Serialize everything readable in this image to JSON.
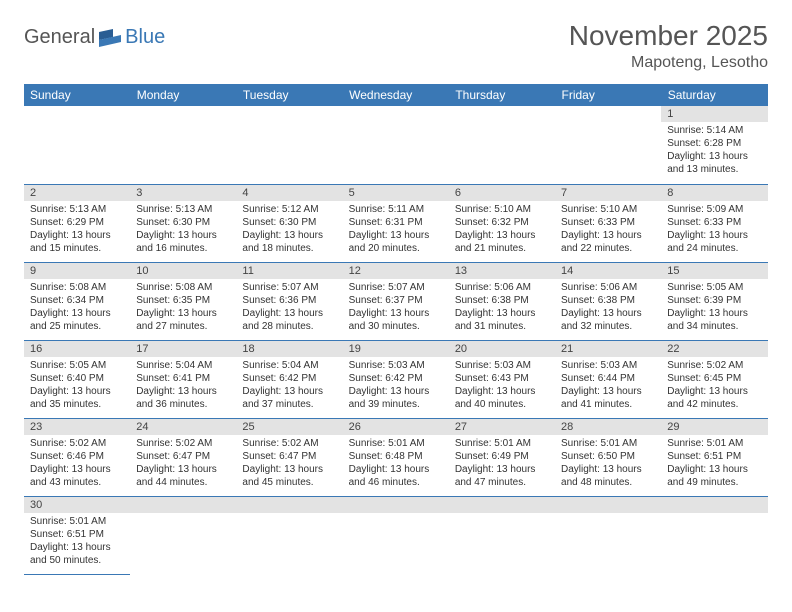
{
  "logo": {
    "part1": "General",
    "part2": "Blue"
  },
  "title": "November 2025",
  "location": "Mapoteng, Lesotho",
  "colors": {
    "header_bg": "#3a78b5",
    "header_text": "#ffffff",
    "daynum_bg": "#e3e3e3",
    "border": "#3a78b5",
    "text": "#333333",
    "logo_gray": "#555555",
    "logo_blue": "#3a78b5"
  },
  "dayHeaders": [
    "Sunday",
    "Monday",
    "Tuesday",
    "Wednesday",
    "Thursday",
    "Friday",
    "Saturday"
  ],
  "weeks": [
    [
      null,
      null,
      null,
      null,
      null,
      null,
      {
        "n": "1",
        "sr": "5:14 AM",
        "ss": "6:28 PM",
        "dl": "13 hours and 13 minutes."
      }
    ],
    [
      {
        "n": "2",
        "sr": "5:13 AM",
        "ss": "6:29 PM",
        "dl": "13 hours and 15 minutes."
      },
      {
        "n": "3",
        "sr": "5:13 AM",
        "ss": "6:30 PM",
        "dl": "13 hours and 16 minutes."
      },
      {
        "n": "4",
        "sr": "5:12 AM",
        "ss": "6:30 PM",
        "dl": "13 hours and 18 minutes."
      },
      {
        "n": "5",
        "sr": "5:11 AM",
        "ss": "6:31 PM",
        "dl": "13 hours and 20 minutes."
      },
      {
        "n": "6",
        "sr": "5:10 AM",
        "ss": "6:32 PM",
        "dl": "13 hours and 21 minutes."
      },
      {
        "n": "7",
        "sr": "5:10 AM",
        "ss": "6:33 PM",
        "dl": "13 hours and 22 minutes."
      },
      {
        "n": "8",
        "sr": "5:09 AM",
        "ss": "6:33 PM",
        "dl": "13 hours and 24 minutes."
      }
    ],
    [
      {
        "n": "9",
        "sr": "5:08 AM",
        "ss": "6:34 PM",
        "dl": "13 hours and 25 minutes."
      },
      {
        "n": "10",
        "sr": "5:08 AM",
        "ss": "6:35 PM",
        "dl": "13 hours and 27 minutes."
      },
      {
        "n": "11",
        "sr": "5:07 AM",
        "ss": "6:36 PM",
        "dl": "13 hours and 28 minutes."
      },
      {
        "n": "12",
        "sr": "5:07 AM",
        "ss": "6:37 PM",
        "dl": "13 hours and 30 minutes."
      },
      {
        "n": "13",
        "sr": "5:06 AM",
        "ss": "6:38 PM",
        "dl": "13 hours and 31 minutes."
      },
      {
        "n": "14",
        "sr": "5:06 AM",
        "ss": "6:38 PM",
        "dl": "13 hours and 32 minutes."
      },
      {
        "n": "15",
        "sr": "5:05 AM",
        "ss": "6:39 PM",
        "dl": "13 hours and 34 minutes."
      }
    ],
    [
      {
        "n": "16",
        "sr": "5:05 AM",
        "ss": "6:40 PM",
        "dl": "13 hours and 35 minutes."
      },
      {
        "n": "17",
        "sr": "5:04 AM",
        "ss": "6:41 PM",
        "dl": "13 hours and 36 minutes."
      },
      {
        "n": "18",
        "sr": "5:04 AM",
        "ss": "6:42 PM",
        "dl": "13 hours and 37 minutes."
      },
      {
        "n": "19",
        "sr": "5:03 AM",
        "ss": "6:42 PM",
        "dl": "13 hours and 39 minutes."
      },
      {
        "n": "20",
        "sr": "5:03 AM",
        "ss": "6:43 PM",
        "dl": "13 hours and 40 minutes."
      },
      {
        "n": "21",
        "sr": "5:03 AM",
        "ss": "6:44 PM",
        "dl": "13 hours and 41 minutes."
      },
      {
        "n": "22",
        "sr": "5:02 AM",
        "ss": "6:45 PM",
        "dl": "13 hours and 42 minutes."
      }
    ],
    [
      {
        "n": "23",
        "sr": "5:02 AM",
        "ss": "6:46 PM",
        "dl": "13 hours and 43 minutes."
      },
      {
        "n": "24",
        "sr": "5:02 AM",
        "ss": "6:47 PM",
        "dl": "13 hours and 44 minutes."
      },
      {
        "n": "25",
        "sr": "5:02 AM",
        "ss": "6:47 PM",
        "dl": "13 hours and 45 minutes."
      },
      {
        "n": "26",
        "sr": "5:01 AM",
        "ss": "6:48 PM",
        "dl": "13 hours and 46 minutes."
      },
      {
        "n": "27",
        "sr": "5:01 AM",
        "ss": "6:49 PM",
        "dl": "13 hours and 47 minutes."
      },
      {
        "n": "28",
        "sr": "5:01 AM",
        "ss": "6:50 PM",
        "dl": "13 hours and 48 minutes."
      },
      {
        "n": "29",
        "sr": "5:01 AM",
        "ss": "6:51 PM",
        "dl": "13 hours and 49 minutes."
      }
    ],
    [
      {
        "n": "30",
        "sr": "5:01 AM",
        "ss": "6:51 PM",
        "dl": "13 hours and 50 minutes."
      },
      null,
      null,
      null,
      null,
      null,
      null
    ]
  ],
  "labels": {
    "sunrise": "Sunrise:",
    "sunset": "Sunset:",
    "daylight": "Daylight:"
  }
}
